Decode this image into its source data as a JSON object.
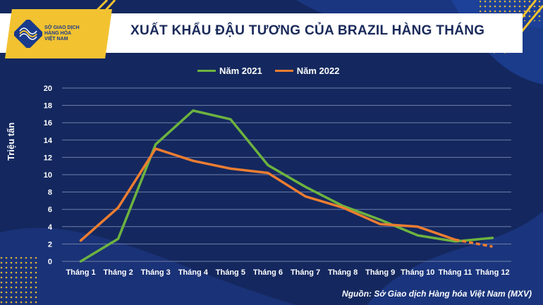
{
  "header": {
    "title": "XUẤT KHẨU ĐẬU TƯƠNG CỦA BRAZIL HÀNG THÁNG",
    "logo_text": "SỞ GIAO DỊCH\nHÀNG HÓA\nVIỆT NAM"
  },
  "source": "Nguồn: Sở Giao dịch Hàng hóa Việt Nam (MXV)",
  "colors": {
    "background": "#14285f",
    "accent_yellow": "#f2c230",
    "series_2021": "#6db33f",
    "series_2022": "#ed7d31"
  },
  "chart_data": {
    "type": "line",
    "title": "XUẤT KHẨU ĐẬU TƯƠNG CỦA BRAZIL HÀNG THÁNG",
    "xlabel": "",
    "ylabel": "Triệu tấn",
    "ylim": [
      0,
      20
    ],
    "yticks": [
      0,
      2,
      4,
      6,
      8,
      10,
      12,
      14,
      16,
      18,
      20
    ],
    "grid": true,
    "legend_position": "top",
    "categories": [
      "Tháng 1",
      "Tháng 2",
      "Tháng 3",
      "Tháng 4",
      "Tháng 5",
      "Tháng 6",
      "Tháng 7",
      "Tháng 8",
      "Tháng 9",
      "Tháng 10",
      "Tháng 11",
      "Tháng 12"
    ],
    "series": [
      {
        "name": "Năm 2021",
        "color": "#6db33f",
        "values": [
          0.0,
          2.6,
          13.5,
          17.4,
          16.4,
          11.1,
          8.6,
          6.4,
          4.8,
          3.0,
          2.3,
          2.7
        ]
      },
      {
        "name": "Năm 2022",
        "color": "#ed7d31",
        "values": [
          2.4,
          6.2,
          13.0,
          11.6,
          10.7,
          10.2,
          7.5,
          6.2,
          4.3,
          4.0,
          2.5,
          1.7
        ],
        "dashed_last_segment": true
      }
    ]
  }
}
